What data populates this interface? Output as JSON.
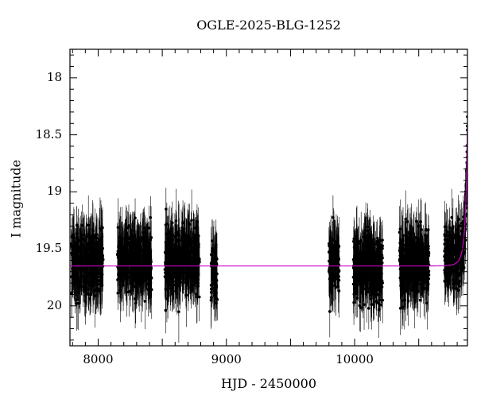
{
  "chart_data": {
    "type": "scatter",
    "title": "OGLE-2025-BLG-1252",
    "xlabel": "HJD - 2450000",
    "ylabel": "I magnitude",
    "xlim": [
      7780,
      10880
    ],
    "ylim": [
      20.35,
      17.75
    ],
    "y_inverted": true,
    "xticks": [
      8000,
      9000,
      10000
    ],
    "yticks": [
      18,
      18.5,
      19,
      19.5,
      20
    ],
    "ytick_labels": [
      "18",
      "18.5",
      "19",
      "19.5",
      "20"
    ],
    "xtick_labels": [
      "8000",
      "9000",
      "10000"
    ],
    "grid": false,
    "colors": {
      "points": "#000000",
      "model": "#cc00cc"
    },
    "series": [
      {
        "kind": "points_with_errorbars",
        "seasons": [
          {
            "x_start": 7790,
            "x_end": 8040,
            "mag_mean": 19.62,
            "mag_scatter": 0.3,
            "err": 0.2
          },
          {
            "x_start": 8150,
            "x_end": 8420,
            "mag_mean": 19.6,
            "mag_scatter": 0.3,
            "err": 0.2
          },
          {
            "x_start": 8520,
            "x_end": 8790,
            "mag_mean": 19.6,
            "mag_scatter": 0.3,
            "err": 0.2
          },
          {
            "x_start": 8880,
            "x_end": 8930,
            "mag_mean": 19.7,
            "mag_scatter": 0.28,
            "err": 0.2
          },
          {
            "x_start": 9800,
            "x_end": 9880,
            "mag_mean": 19.62,
            "mag_scatter": 0.28,
            "err": 0.2
          },
          {
            "x_start": 9990,
            "x_end": 10220,
            "mag_mean": 19.65,
            "mag_scatter": 0.3,
            "err": 0.2
          },
          {
            "x_start": 10350,
            "x_end": 10580,
            "mag_mean": 19.62,
            "mag_scatter": 0.3,
            "err": 0.2
          },
          {
            "x_start": 10700,
            "x_end": 10880,
            "mag_mean": 19.55,
            "mag_scatter": 0.28,
            "err": 0.18
          }
        ]
      },
      {
        "kind": "model_curve",
        "baseline_mag": 19.65,
        "peak_x": 10885,
        "peak_mag": 18.1,
        "tE": 45
      }
    ]
  }
}
